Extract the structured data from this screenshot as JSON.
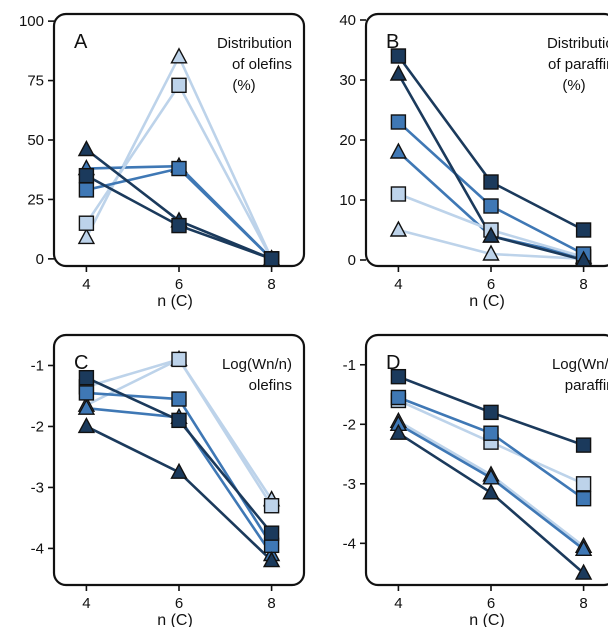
{
  "chart_data": [
    {
      "type": "line",
      "panel": "A",
      "annotation": [
        "Distribution",
        "of olefins",
        "(%)"
      ],
      "xlabel": "n (C)",
      "x": [
        4,
        6,
        8
      ],
      "xticks": [
        4,
        6,
        8
      ],
      "xlim": [
        3.3,
        8.7
      ],
      "yticks": [
        0,
        25,
        50,
        75,
        100
      ],
      "ylim": [
        -3,
        103
      ],
      "series": [
        {
          "marker": "square",
          "color": "#1b3a5c",
          "values": [
            35,
            14,
            0
          ]
        },
        {
          "marker": "square",
          "color": "#3f78b5",
          "values": [
            29,
            38,
            0
          ]
        },
        {
          "marker": "square",
          "color": "#bdd3ea",
          "values": [
            15,
            73,
            0
          ]
        },
        {
          "marker": "triangle",
          "color": "#1b3a5c",
          "values": [
            46,
            16,
            0
          ]
        },
        {
          "marker": "triangle",
          "color": "#3f78b5",
          "values": [
            38,
            39,
            0
          ]
        },
        {
          "marker": "triangle",
          "color": "#bdd3ea",
          "values": [
            9,
            85,
            0
          ]
        }
      ]
    },
    {
      "type": "line",
      "panel": "B",
      "annotation": [
        "Distribution",
        "of paraffins",
        "(%)"
      ],
      "xlabel": "n (C)",
      "x": [
        4,
        6,
        8
      ],
      "xticks": [
        4,
        6,
        8
      ],
      "xlim": [
        3.3,
        8.7
      ],
      "yticks": [
        0,
        10,
        20,
        30,
        40
      ],
      "ylim": [
        -1,
        41
      ],
      "series": [
        {
          "marker": "square",
          "color": "#1b3a5c",
          "values": [
            34,
            13,
            5
          ]
        },
        {
          "marker": "square",
          "color": "#3f78b5",
          "values": [
            23,
            9,
            1
          ]
        },
        {
          "marker": "square",
          "color": "#bdd3ea",
          "values": [
            11,
            5,
            0.5
          ]
        },
        {
          "marker": "triangle",
          "color": "#1b3a5c",
          "values": [
            31,
            4,
            0
          ]
        },
        {
          "marker": "triangle",
          "color": "#3f78b5",
          "values": [
            18,
            4,
            0.5
          ]
        },
        {
          "marker": "triangle",
          "color": "#bdd3ea",
          "values": [
            5,
            1,
            0.2
          ]
        }
      ]
    },
    {
      "type": "line",
      "panel": "C",
      "annotation": [
        "Log(Wn/n)",
        "olefins"
      ],
      "xlabel": "n (C)",
      "x": [
        4,
        6,
        8
      ],
      "xticks": [
        4,
        6,
        8
      ],
      "xlim": [
        3.3,
        8.7
      ],
      "yticks": [
        -1,
        -2,
        -3,
        -4
      ],
      "ylim": [
        -4.6,
        -0.5
      ],
      "series": [
        {
          "marker": "square",
          "color": "#1b3a5c",
          "values": [
            -1.2,
            -1.9,
            -3.75
          ]
        },
        {
          "marker": "square",
          "color": "#3f78b5",
          "values": [
            -1.45,
            -1.55,
            -3.95
          ]
        },
        {
          "marker": "square",
          "color": "#bdd3ea",
          "values": [
            -1.35,
            -0.9,
            -3.3
          ]
        },
        {
          "marker": "triangle",
          "color": "#1b3a5c",
          "values": [
            -2.0,
            -2.75,
            -4.2
          ]
        },
        {
          "marker": "triangle",
          "color": "#3f78b5",
          "values": [
            -1.7,
            -1.85,
            -4.1
          ]
        },
        {
          "marker": "triangle",
          "color": "#bdd3ea",
          "values": [
            -1.65,
            -0.9,
            -3.2
          ]
        }
      ]
    },
    {
      "type": "line",
      "panel": "D",
      "annotation": [
        "Log(Wn/n)",
        "paraffins"
      ],
      "xlabel": "n (C)",
      "x": [
        4,
        6,
        8
      ],
      "xticks": [
        4,
        6,
        8
      ],
      "xlim": [
        3.3,
        8.7
      ],
      "yticks": [
        -1,
        -2,
        -3,
        -4
      ],
      "ylim": [
        -4.7,
        -0.5
      ],
      "series": [
        {
          "marker": "square",
          "color": "#1b3a5c",
          "values": [
            -1.2,
            -1.8,
            -2.35
          ]
        },
        {
          "marker": "square",
          "color": "#3f78b5",
          "values": [
            -1.55,
            -2.15,
            -3.25
          ]
        },
        {
          "marker": "square",
          "color": "#bdd3ea",
          "values": [
            -1.6,
            -2.3,
            -3.0
          ]
        },
        {
          "marker": "triangle",
          "color": "#1b3a5c",
          "values": [
            -2.15,
            -3.15,
            -4.5
          ]
        },
        {
          "marker": "triangle",
          "color": "#3f78b5",
          "values": [
            -2.0,
            -2.9,
            -4.1
          ]
        },
        {
          "marker": "triangle",
          "color": "#bdd3ea",
          "values": [
            -1.95,
            -2.85,
            -4.05
          ]
        }
      ]
    }
  ]
}
